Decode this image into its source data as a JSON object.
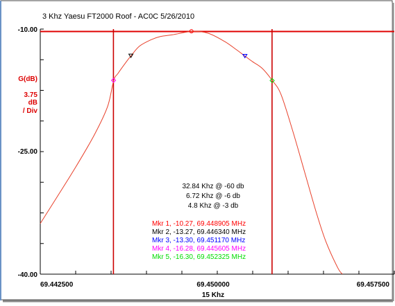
{
  "chart_data": {
    "type": "line",
    "title": "3 Khz Yaesu FT2000 Roof - AC0C 5/26/2010",
    "xlabel": "15 Khz",
    "ylabel_lines": [
      "G(dB)",
      "3.75",
      "dB",
      "/ Div"
    ],
    "xlim": [
      69.4425,
      69.4575
    ],
    "ylim": [
      -40.0,
      -10.0
    ],
    "x_ticks": [
      "69.442500",
      "69.450000",
      "69.457500"
    ],
    "y_ticks": [
      "-10.00",
      "-25.00",
      "-40.00"
    ],
    "reference_level": -10.3,
    "vertical_markers": [
      69.4456,
      69.45232
    ],
    "series": [
      {
        "color": "#e8402a",
        "x": [
          69.4425,
          69.4432,
          69.444,
          69.4448,
          69.44535,
          69.44561,
          69.4458,
          69.4462,
          69.44634,
          69.4467,
          69.4472,
          69.4476,
          69.4481,
          69.44891,
          69.4496,
          69.4503,
          69.4508,
          69.45117,
          69.4515,
          69.4519,
          69.45233,
          69.4527,
          69.4532,
          69.4537,
          69.4542,
          69.4546,
          69.4551,
          69.4553
        ],
        "y": [
          -33.8,
          -30.6,
          -26.9,
          -22.9,
          -19.5,
          -16.3,
          -15.4,
          -13.8,
          -13.3,
          -12.1,
          -11.3,
          -10.9,
          -10.7,
          -10.3,
          -10.5,
          -11.5,
          -12.5,
          -13.3,
          -14.0,
          -14.8,
          -16.3,
          -18.0,
          -22.5,
          -27.5,
          -32.5,
          -36.0,
          -39.2,
          -40.0
        ]
      }
    ],
    "markers": [
      {
        "label": "Mkr 1, -10.27, 69.448905 MHz",
        "color": "#ff0000",
        "x": 69.448905,
        "y": -10.27,
        "symbol": "circle"
      },
      {
        "label": "Mkr 2, -13.27, 69.446340 MHz",
        "color": "#000000",
        "x": 69.44634,
        "y": -13.27,
        "symbol": "triangle-down"
      },
      {
        "label": "Mkr 3, -13.30, 69.451170 MHz",
        "color": "#0000ff",
        "x": 69.45117,
        "y": -13.3,
        "symbol": "triangle-down"
      },
      {
        "label": "Mkr 4, -16.28, 69.445605 MHz",
        "color": "#ff00ff",
        "x": 69.445605,
        "y": -16.28,
        "symbol": "diamond"
      },
      {
        "label": "Mkr 5, -16.30, 69.452325 MHz",
        "color": "#00dd00",
        "x": 69.452325,
        "y": -16.3,
        "symbol": "diamond"
      }
    ],
    "bandwidth_notes": [
      "32.84 Khz @ -60 db",
      "6.72 Khz @ -6 db",
      "4.8 Khz @ -3 db"
    ],
    "grid": false,
    "colors": {
      "axis_ticks": "#000000",
      "guide_lines": "#e00000",
      "ylabel": "#dd0000",
      "frame_left": "#6b93c6"
    }
  }
}
